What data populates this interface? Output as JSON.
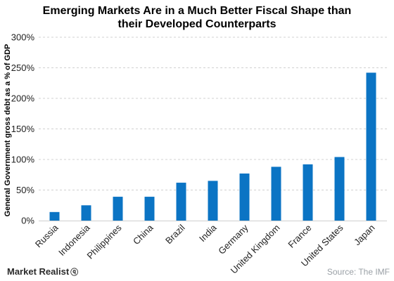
{
  "chart_data": {
    "type": "bar",
    "title_lines": [
      "Emerging Markets Are in a Much Better Fiscal Shape than",
      "their Developed Counterparts"
    ],
    "ylabel": "General Government gross debt as a % of GDP",
    "xlabel": "",
    "categories": [
      "Russia",
      "Indonesia",
      "Philippines",
      "China",
      "Brazil",
      "India",
      "Germany",
      "United Kingdom",
      "France",
      "United States",
      "Japan"
    ],
    "values": [
      14,
      25,
      39,
      39,
      62,
      65,
      77,
      88,
      92,
      104,
      242
    ],
    "ylim": [
      0,
      300
    ],
    "yticks": [
      0,
      50,
      100,
      150,
      200,
      250,
      300
    ],
    "ytick_labels": [
      "0%",
      "50%",
      "100%",
      "150%",
      "200%",
      "250%",
      "300%"
    ],
    "grid": true,
    "bar_color": "#0b74c4"
  },
  "footer": {
    "brand": "Market Realist",
    "brand_mark": "ⓠ",
    "source": "Source: The IMF"
  }
}
